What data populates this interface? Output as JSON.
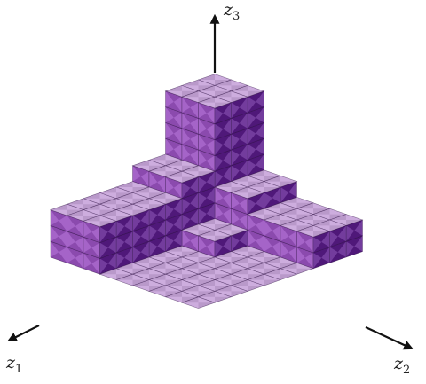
{
  "axes": [
    {
      "id": "z1",
      "symbol": "z",
      "subscript": "1"
    },
    {
      "id": "z2",
      "symbol": "z",
      "subscript": "2"
    },
    {
      "id": "z3",
      "symbol": "z",
      "subscript": "3"
    }
  ],
  "colors": {
    "top": "#c9a6dc",
    "left": "#9b53c2",
    "right": "#5c1d8d",
    "cell_dark": "#000000",
    "cell_light": "#ffffff"
  }
}
